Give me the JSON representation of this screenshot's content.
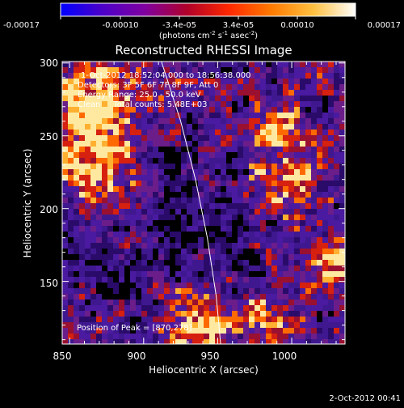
{
  "colorbar": {
    "ticks": [
      "-0.00017",
      "-0.00010",
      "-3.4e-05",
      "3.4e-05",
      "0.00010",
      "0.00017"
    ],
    "unit_label_main": "(photons cm",
    "unit_label_exp1": "-2",
    "unit_label_mid1": " s",
    "unit_label_exp2": "-1",
    "unit_label_mid2": " asec",
    "unit_label_exp3": "-2",
    "unit_label_end": ")",
    "colors": [
      "#0000ff",
      "#4d00c8",
      "#8000a0",
      "#b0002a",
      "#ff2800",
      "#ff7a00",
      "#ffc040",
      "#ffffff"
    ]
  },
  "chart_data": {
    "type": "heatmap",
    "title": "Reconstructed RHESSI Image",
    "xlabel": "Heliocentric X (arcsec)",
    "ylabel": "Heliocentric Y (arcsec)",
    "xlim": [
      845,
      1036
    ],
    "ylim": [
      107,
      301
    ],
    "xticks": [
      850,
      900,
      950,
      1000
    ],
    "yticks": [
      150,
      200,
      250,
      300
    ],
    "annotations": [
      "1-Oct-2012 18:52:04.000 to 18:56:38.000",
      "Detectors: 3F 5F 6F 7F 8F 9F, Att 0",
      "Energy Range: 25.0 - 50.0 keV",
      "Clean     Total counts: 5.48E+03"
    ],
    "peak_label": "Position of Peak = [870,278]",
    "limb_line": [
      [
        912,
        301
      ],
      [
        925,
        260
      ],
      [
        935,
        220
      ],
      [
        943,
        180
      ],
      [
        949,
        140
      ],
      [
        952,
        107
      ]
    ]
  },
  "footer": {
    "timestamp": "2-Oct-2012 00:41"
  }
}
